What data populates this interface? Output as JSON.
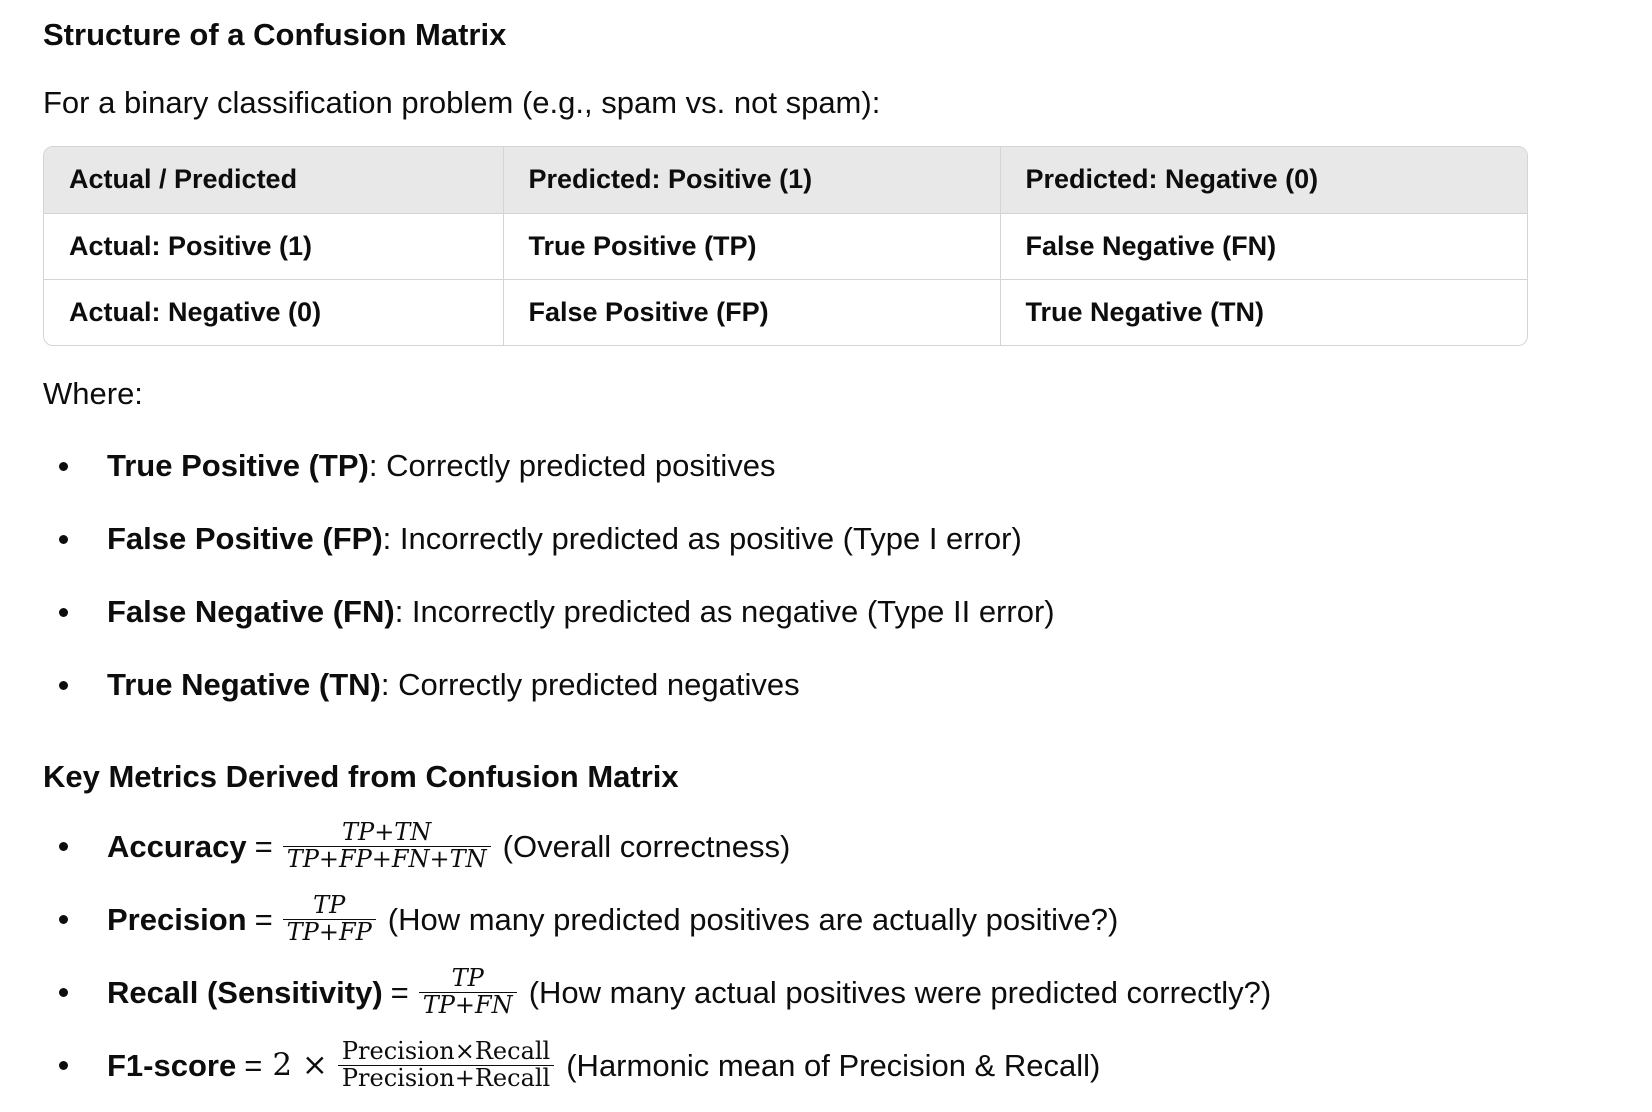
{
  "structure_heading": "Structure of a Confusion Matrix",
  "intro": "For a binary classification problem (e.g., spam vs. not spam):",
  "matrix": {
    "headers": [
      "Actual / Predicted",
      "Predicted: Positive (1)",
      "Predicted: Negative (0)"
    ],
    "rows": [
      [
        "Actual: Positive (1)",
        "True Positive (TP)",
        "False Negative (FN)"
      ],
      [
        "Actual: Negative (0)",
        "False Positive (FP)",
        "True Negative (TN)"
      ]
    ]
  },
  "where_label": "Where:",
  "definitions": [
    {
      "term": "True Positive (TP)",
      "desc": ": Correctly predicted positives"
    },
    {
      "term": "False Positive (FP)",
      "desc": ": Incorrectly predicted as positive (Type I error)"
    },
    {
      "term": "False Negative (FN)",
      "desc": ": Incorrectly predicted as negative (Type II error)"
    },
    {
      "term": "True Negative (TN)",
      "desc": ": Correctly predicted negatives"
    }
  ],
  "metrics_heading": "Key Metrics Derived from Confusion Matrix",
  "metrics": [
    {
      "name": "Accuracy",
      "eq": "=",
      "numerator": "TP+TN",
      "denominator": "TP+FP+FN+TN",
      "note": "(Overall correctness)"
    },
    {
      "name": "Precision",
      "eq": "=",
      "numerator": "TP",
      "denominator": "TP+FP",
      "note": "(How many predicted positives are actually positive?)"
    },
    {
      "name": "Recall (Sensitivity)",
      "eq": "=",
      "numerator": "TP",
      "denominator": "TP+FN",
      "note": "(How many actual positives were predicted correctly?)"
    },
    {
      "name": "F1-score",
      "eq": "=",
      "factor": "2 ×",
      "numerator": "Precision×Recall",
      "denominator": "Precision+Recall",
      "note": "(Harmonic mean of Precision & Recall)"
    }
  ]
}
